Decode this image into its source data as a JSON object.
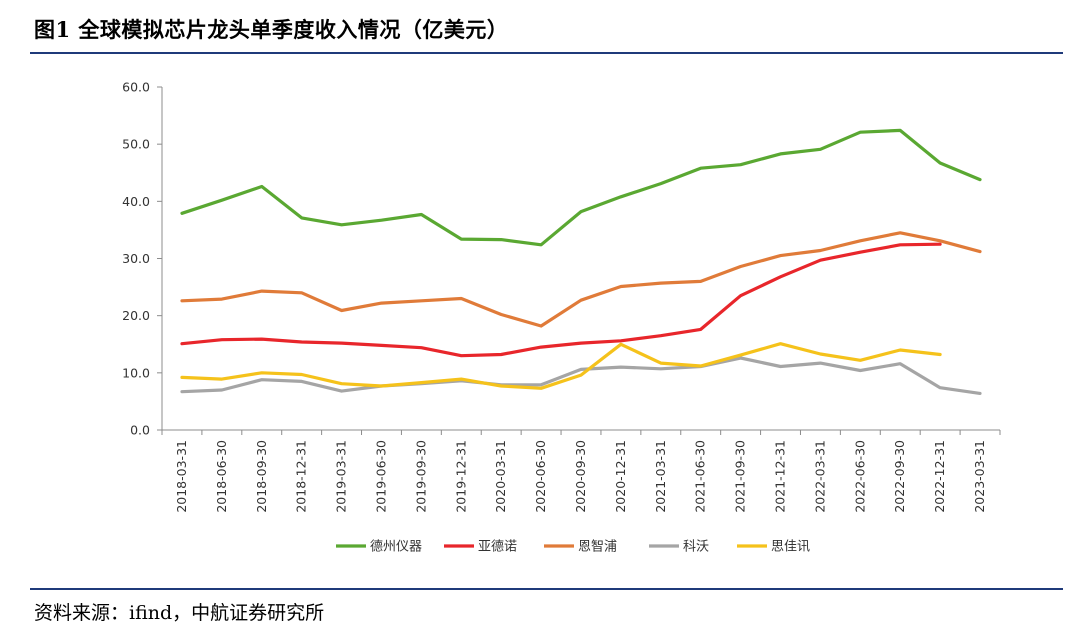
{
  "figure": {
    "title": "图1 全球模拟芯片龙头单季度收入情况（亿美元）",
    "source": "资料来源：ifind，中航证券研究所"
  },
  "chart_data": {
    "type": "line",
    "title": "",
    "xlabel": "",
    "ylabel": "",
    "ylim": [
      0,
      60
    ],
    "yticks": [
      "0.0",
      "10.0",
      "20.0",
      "30.0",
      "40.0",
      "50.0",
      "60.0"
    ],
    "grid": false,
    "legend_position": "bottom",
    "categories": [
      "2018-03-31",
      "2018-06-30",
      "2018-09-30",
      "2018-12-31",
      "2019-03-31",
      "2019-06-30",
      "2019-09-30",
      "2019-12-31",
      "2020-03-31",
      "2020-06-30",
      "2020-09-30",
      "2020-12-31",
      "2021-03-31",
      "2021-06-30",
      "2021-09-30",
      "2021-12-31",
      "2022-03-31",
      "2022-06-30",
      "2022-09-30",
      "2022-12-31",
      "2023-03-31"
    ],
    "series": [
      {
        "name": "德州仪器",
        "color": "#5aa832",
        "values": [
          37.9,
          40.2,
          42.6,
          37.1,
          35.9,
          36.7,
          37.7,
          33.4,
          33.3,
          32.4,
          38.2,
          40.8,
          43.1,
          45.8,
          46.4,
          48.3,
          49.1,
          52.1,
          52.4,
          46.7,
          43.8
        ]
      },
      {
        "name": "亚德诺",
        "color": "#e8262b",
        "values": [
          15.1,
          15.8,
          15.9,
          15.4,
          15.2,
          14.8,
          14.4,
          13.0,
          13.2,
          14.5,
          15.2,
          15.6,
          16.5,
          17.6,
          23.5,
          26.8,
          29.7,
          31.1,
          32.4,
          32.5,
          null
        ]
      },
      {
        "name": "恩智浦",
        "color": "#e07b39",
        "values": [
          22.6,
          22.9,
          24.3,
          24.0,
          20.9,
          22.2,
          22.6,
          23.0,
          20.2,
          18.2,
          22.7,
          25.1,
          25.7,
          26.0,
          28.6,
          30.5,
          31.4,
          33.1,
          34.5,
          33.1,
          31.2
        ]
      },
      {
        "name": "科沃",
        "color": "#a5a5a5",
        "values": [
          6.7,
          7.0,
          8.8,
          8.5,
          6.8,
          7.7,
          8.1,
          8.6,
          7.9,
          7.9,
          10.6,
          11.0,
          10.7,
          11.1,
          12.6,
          11.1,
          11.7,
          10.4,
          11.6,
          7.4,
          6.4
        ]
      },
      {
        "name": "思佳讯",
        "color": "#f5c21b",
        "values": [
          9.2,
          8.9,
          10.0,
          9.7,
          8.1,
          7.7,
          8.3,
          8.9,
          7.7,
          7.3,
          9.6,
          15.0,
          11.7,
          11.2,
          13.1,
          15.1,
          13.3,
          12.2,
          14.0,
          13.2,
          null
        ]
      }
    ]
  }
}
